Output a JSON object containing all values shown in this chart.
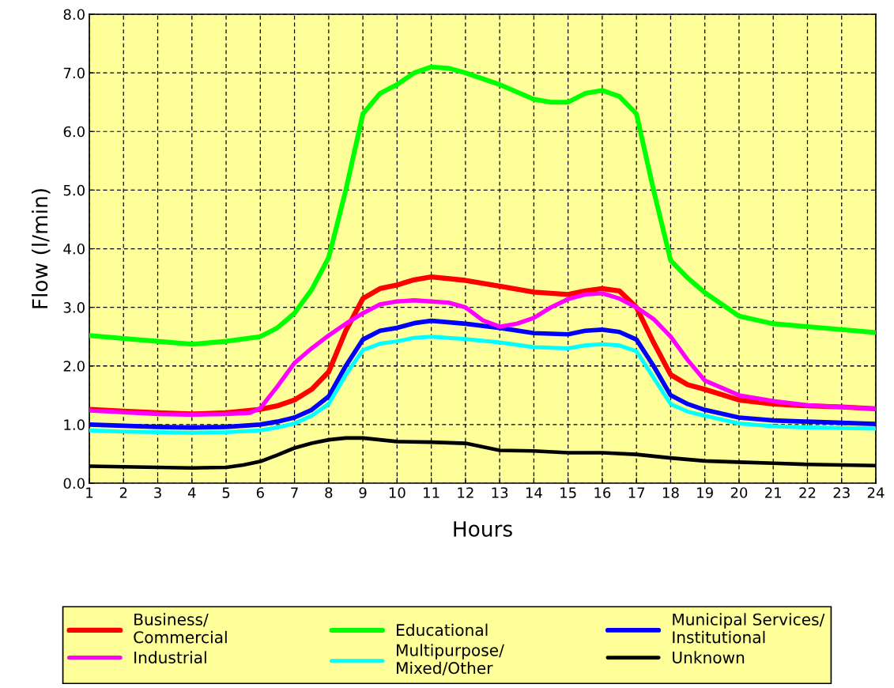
{
  "chart_data": {
    "type": "line",
    "xlabel": "Hours",
    "ylabel": "Flow (l/min)",
    "xlim": [
      1,
      24
    ],
    "xticks": [
      1,
      2,
      3,
      4,
      5,
      6,
      7,
      8,
      9,
      10,
      11,
      12,
      13,
      14,
      15,
      16,
      17,
      18,
      19,
      20,
      21,
      22,
      23,
      24
    ],
    "ylim": [
      0,
      8
    ],
    "yticks": [
      {
        "value": 0,
        "label": "0.0"
      },
      {
        "value": 1,
        "label": "1.0"
      },
      {
        "value": 2,
        "label": "2.0"
      },
      {
        "value": 3,
        "label": "3.0"
      },
      {
        "value": 4,
        "label": "4.0"
      },
      {
        "value": 5,
        "label": "5.0"
      },
      {
        "value": 6,
        "label": "6.0"
      },
      {
        "value": 7,
        "label": "7.0"
      },
      {
        "value": 8,
        "label": "8.0"
      }
    ],
    "grid": true,
    "legend": "bottom",
    "marker": "none",
    "line_style": "solid",
    "series": [
      {
        "name": "Business/\nCommercial",
        "color": "#ff0000",
        "x": [
          1,
          2,
          3,
          4,
          5,
          6,
          6.5,
          7,
          7.5,
          8,
          8.5,
          9,
          9.5,
          10,
          10.5,
          11,
          12,
          13,
          14,
          15,
          15.5,
          16,
          16.5,
          17,
          17.5,
          18,
          18.5,
          19,
          20,
          21,
          22,
          23,
          24
        ],
        "values": [
          1.26,
          1.23,
          1.2,
          1.18,
          1.2,
          1.26,
          1.32,
          1.42,
          1.6,
          1.9,
          2.6,
          3.15,
          3.32,
          3.38,
          3.47,
          3.52,
          3.46,
          3.36,
          3.26,
          3.22,
          3.28,
          3.32,
          3.28,
          3.0,
          2.4,
          1.85,
          1.68,
          1.6,
          1.42,
          1.35,
          1.32,
          1.3,
          1.27
        ]
      },
      {
        "name": "Educational",
        "color": "#00ff00",
        "x": [
          1,
          2,
          3,
          4,
          5,
          6,
          6.5,
          7,
          7.5,
          8,
          8.5,
          9,
          9.5,
          10,
          10.5,
          11,
          11.5,
          12,
          13,
          14,
          14.5,
          15,
          15.5,
          16,
          16.5,
          17,
          17.5,
          18,
          18.5,
          19,
          20,
          21,
          22,
          23,
          24
        ],
        "values": [
          2.52,
          2.47,
          2.42,
          2.37,
          2.42,
          2.5,
          2.65,
          2.9,
          3.3,
          3.85,
          5.0,
          6.3,
          6.65,
          6.8,
          7.0,
          7.1,
          7.08,
          7.0,
          6.8,
          6.55,
          6.5,
          6.5,
          6.65,
          6.7,
          6.6,
          6.3,
          5.0,
          3.8,
          3.5,
          3.25,
          2.85,
          2.72,
          2.67,
          2.62,
          2.57
        ]
      },
      {
        "name": "Municipal Services/\nInstitutional",
        "color": "#0000ff",
        "x": [
          1,
          2,
          3,
          4,
          5,
          6,
          6.5,
          7,
          7.5,
          8,
          8.5,
          9,
          9.5,
          10,
          10.5,
          11,
          12,
          13,
          14,
          15,
          15.5,
          16,
          16.5,
          17,
          17.5,
          18,
          18.5,
          19,
          20,
          21,
          22,
          23,
          24
        ],
        "values": [
          1.0,
          0.98,
          0.96,
          0.95,
          0.96,
          1.0,
          1.05,
          1.12,
          1.25,
          1.48,
          2.0,
          2.45,
          2.6,
          2.65,
          2.73,
          2.77,
          2.72,
          2.65,
          2.56,
          2.54,
          2.6,
          2.62,
          2.58,
          2.45,
          2.0,
          1.5,
          1.35,
          1.25,
          1.12,
          1.07,
          1.05,
          1.03,
          1.01
        ]
      },
      {
        "name": "Industrial",
        "color": "#ff00ff",
        "x": [
          1,
          2,
          3,
          4,
          5,
          5.7,
          6,
          6.5,
          7,
          7.5,
          8,
          8.5,
          9,
          9.5,
          10,
          10.5,
          11,
          11.5,
          12,
          12.5,
          13,
          13.5,
          14,
          14.5,
          15,
          15.5,
          16,
          16.5,
          17,
          17.5,
          18,
          18.5,
          19,
          20,
          21,
          22,
          23,
          24
        ],
        "values": [
          1.24,
          1.21,
          1.18,
          1.17,
          1.18,
          1.2,
          1.28,
          1.65,
          2.05,
          2.3,
          2.52,
          2.72,
          2.9,
          3.05,
          3.1,
          3.12,
          3.1,
          3.08,
          3.0,
          2.78,
          2.67,
          2.72,
          2.82,
          3.0,
          3.14,
          3.22,
          3.24,
          3.15,
          3.0,
          2.8,
          2.5,
          2.1,
          1.75,
          1.5,
          1.4,
          1.33,
          1.3,
          1.27
        ]
      },
      {
        "name": "Multipurpose/\nMixed/Other",
        "color": "#00ffff",
        "x": [
          1,
          2,
          3,
          4,
          5,
          6,
          6.5,
          7,
          7.5,
          8,
          8.5,
          9,
          9.5,
          10,
          10.5,
          11,
          12,
          13,
          14,
          15,
          15.5,
          16,
          16.5,
          17,
          17.5,
          18,
          18.5,
          19,
          20,
          21,
          22,
          23,
          24
        ],
        "values": [
          0.9,
          0.88,
          0.87,
          0.86,
          0.87,
          0.9,
          0.95,
          1.02,
          1.15,
          1.35,
          1.85,
          2.27,
          2.38,
          2.42,
          2.48,
          2.5,
          2.46,
          2.4,
          2.32,
          2.3,
          2.35,
          2.37,
          2.35,
          2.25,
          1.8,
          1.35,
          1.22,
          1.15,
          1.02,
          0.97,
          0.95,
          0.94,
          0.93
        ]
      },
      {
        "name": "Unknown",
        "color": "#000000",
        "x": [
          1,
          2,
          3,
          4,
          5,
          5.5,
          6,
          6.5,
          7,
          7.5,
          8,
          8.5,
          9,
          9.5,
          10,
          11,
          12,
          12.5,
          13,
          14,
          15,
          16,
          17,
          18,
          19,
          20,
          21,
          22,
          23,
          24
        ],
        "values": [
          0.29,
          0.28,
          0.27,
          0.26,
          0.27,
          0.31,
          0.37,
          0.48,
          0.6,
          0.68,
          0.74,
          0.77,
          0.77,
          0.74,
          0.71,
          0.7,
          0.68,
          0.62,
          0.56,
          0.55,
          0.52,
          0.52,
          0.49,
          0.43,
          0.38,
          0.36,
          0.34,
          0.32,
          0.31,
          0.3
        ]
      }
    ]
  }
}
